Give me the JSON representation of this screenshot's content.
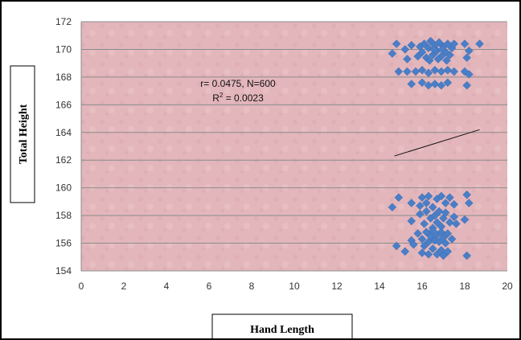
{
  "chart_data": {
    "type": "scatter",
    "title": "",
    "xlabel": "Hand Length",
    "ylabel": "Total Height",
    "xlim": [
      0,
      20
    ],
    "ylim": [
      154,
      172
    ],
    "xticks": [
      0,
      2,
      4,
      6,
      8,
      10,
      12,
      14,
      16,
      18,
      20
    ],
    "yticks": [
      154,
      156,
      158,
      160,
      162,
      164,
      166,
      168,
      170,
      172
    ],
    "grid": "horizontal",
    "plot_background": "#e2b3b8",
    "marker_color": "#4a7ec6",
    "annotation": {
      "line1": "r= 0.0475, N=600",
      "line2_prefix": "R",
      "line2_sup": "2",
      "line2_suffix": " = 0.0023"
    },
    "trendline": {
      "x": [
        14.7,
        18.7
      ],
      "y": [
        162.3,
        164.2
      ]
    },
    "points": [
      {
        "x": 14.6,
        "y": 169.7
      },
      {
        "x": 14.8,
        "y": 170.4
      },
      {
        "x": 15.2,
        "y": 170.0
      },
      {
        "x": 15.5,
        "y": 170.3
      },
      {
        "x": 15.8,
        "y": 169.5
      },
      {
        "x": 15.9,
        "y": 170.2
      },
      {
        "x": 16.0,
        "y": 169.8
      },
      {
        "x": 16.1,
        "y": 170.4
      },
      {
        "x": 16.2,
        "y": 169.4
      },
      {
        "x": 16.3,
        "y": 170.1
      },
      {
        "x": 16.4,
        "y": 170.6
      },
      {
        "x": 16.5,
        "y": 169.6
      },
      {
        "x": 16.6,
        "y": 170.3
      },
      {
        "x": 16.7,
        "y": 169.9
      },
      {
        "x": 16.8,
        "y": 170.5
      },
      {
        "x": 16.9,
        "y": 169.5
      },
      {
        "x": 17.0,
        "y": 170.2
      },
      {
        "x": 17.1,
        "y": 169.8
      },
      {
        "x": 17.2,
        "y": 170.4
      },
      {
        "x": 17.3,
        "y": 169.6
      },
      {
        "x": 17.4,
        "y": 170.1
      },
      {
        "x": 17.5,
        "y": 170.4
      },
      {
        "x": 16.35,
        "y": 169.2
      },
      {
        "x": 16.75,
        "y": 169.3
      },
      {
        "x": 17.15,
        "y": 169.2
      },
      {
        "x": 16.55,
        "y": 170.0
      },
      {
        "x": 16.95,
        "y": 170.0
      },
      {
        "x": 18.0,
        "y": 170.4
      },
      {
        "x": 18.2,
        "y": 169.9
      },
      {
        "x": 18.1,
        "y": 169.4
      },
      {
        "x": 18.7,
        "y": 170.4
      },
      {
        "x": 15.3,
        "y": 169.3
      },
      {
        "x": 14.9,
        "y": 168.4
      },
      {
        "x": 15.3,
        "y": 168.4
      },
      {
        "x": 15.7,
        "y": 168.4
      },
      {
        "x": 16.0,
        "y": 168.5
      },
      {
        "x": 16.3,
        "y": 168.3
      },
      {
        "x": 16.6,
        "y": 168.5
      },
      {
        "x": 16.9,
        "y": 168.4
      },
      {
        "x": 17.2,
        "y": 168.5
      },
      {
        "x": 17.5,
        "y": 168.4
      },
      {
        "x": 18.0,
        "y": 168.4
      },
      {
        "x": 18.2,
        "y": 168.2
      },
      {
        "x": 15.5,
        "y": 167.5
      },
      {
        "x": 16.0,
        "y": 167.6
      },
      {
        "x": 16.3,
        "y": 167.4
      },
      {
        "x": 16.6,
        "y": 167.5
      },
      {
        "x": 16.9,
        "y": 167.4
      },
      {
        "x": 17.2,
        "y": 167.6
      },
      {
        "x": 18.1,
        "y": 167.4
      },
      {
        "x": 14.6,
        "y": 158.6
      },
      {
        "x": 14.9,
        "y": 159.3
      },
      {
        "x": 15.5,
        "y": 158.9
      },
      {
        "x": 15.9,
        "y": 158.7
      },
      {
        "x": 16.0,
        "y": 159.3
      },
      {
        "x": 16.2,
        "y": 158.9
      },
      {
        "x": 16.3,
        "y": 159.4
      },
      {
        "x": 16.5,
        "y": 158.6
      },
      {
        "x": 16.7,
        "y": 159.2
      },
      {
        "x": 16.9,
        "y": 159.4
      },
      {
        "x": 17.1,
        "y": 158.9
      },
      {
        "x": 17.3,
        "y": 159.3
      },
      {
        "x": 17.5,
        "y": 158.8
      },
      {
        "x": 18.1,
        "y": 159.5
      },
      {
        "x": 18.2,
        "y": 158.9
      },
      {
        "x": 15.5,
        "y": 157.6
      },
      {
        "x": 15.9,
        "y": 158.1
      },
      {
        "x": 16.1,
        "y": 157.4
      },
      {
        "x": 16.2,
        "y": 158.3
      },
      {
        "x": 16.4,
        "y": 157.8
      },
      {
        "x": 16.5,
        "y": 157.1
      },
      {
        "x": 16.6,
        "y": 158.0
      },
      {
        "x": 16.7,
        "y": 157.5
      },
      {
        "x": 16.8,
        "y": 158.3
      },
      {
        "x": 16.9,
        "y": 157.2
      },
      {
        "x": 17.0,
        "y": 157.8
      },
      {
        "x": 17.1,
        "y": 158.2
      },
      {
        "x": 17.3,
        "y": 157.5
      },
      {
        "x": 17.5,
        "y": 157.9
      },
      {
        "x": 17.6,
        "y": 157.4
      },
      {
        "x": 18.0,
        "y": 157.7
      },
      {
        "x": 15.8,
        "y": 156.7
      },
      {
        "x": 16.0,
        "y": 156.3
      },
      {
        "x": 16.2,
        "y": 156.8
      },
      {
        "x": 16.3,
        "y": 156.1
      },
      {
        "x": 16.4,
        "y": 156.5
      },
      {
        "x": 16.5,
        "y": 156.9
      },
      {
        "x": 16.6,
        "y": 156.2
      },
      {
        "x": 16.7,
        "y": 156.6
      },
      {
        "x": 16.8,
        "y": 156.1
      },
      {
        "x": 16.9,
        "y": 156.8
      },
      {
        "x": 17.0,
        "y": 156.4
      },
      {
        "x": 17.1,
        "y": 156.0
      },
      {
        "x": 17.2,
        "y": 156.7
      },
      {
        "x": 17.4,
        "y": 156.3
      },
      {
        "x": 15.5,
        "y": 156.2
      },
      {
        "x": 14.8,
        "y": 155.8
      },
      {
        "x": 15.2,
        "y": 155.4
      },
      {
        "x": 15.6,
        "y": 155.9
      },
      {
        "x": 16.0,
        "y": 155.3
      },
      {
        "x": 16.1,
        "y": 155.8
      },
      {
        "x": 16.3,
        "y": 155.2
      },
      {
        "x": 16.5,
        "y": 155.6
      },
      {
        "x": 16.7,
        "y": 155.2
      },
      {
        "x": 16.9,
        "y": 155.5
      },
      {
        "x": 17.0,
        "y": 155.1
      },
      {
        "x": 17.2,
        "y": 155.4
      },
      {
        "x": 18.1,
        "y": 155.1
      }
    ]
  }
}
